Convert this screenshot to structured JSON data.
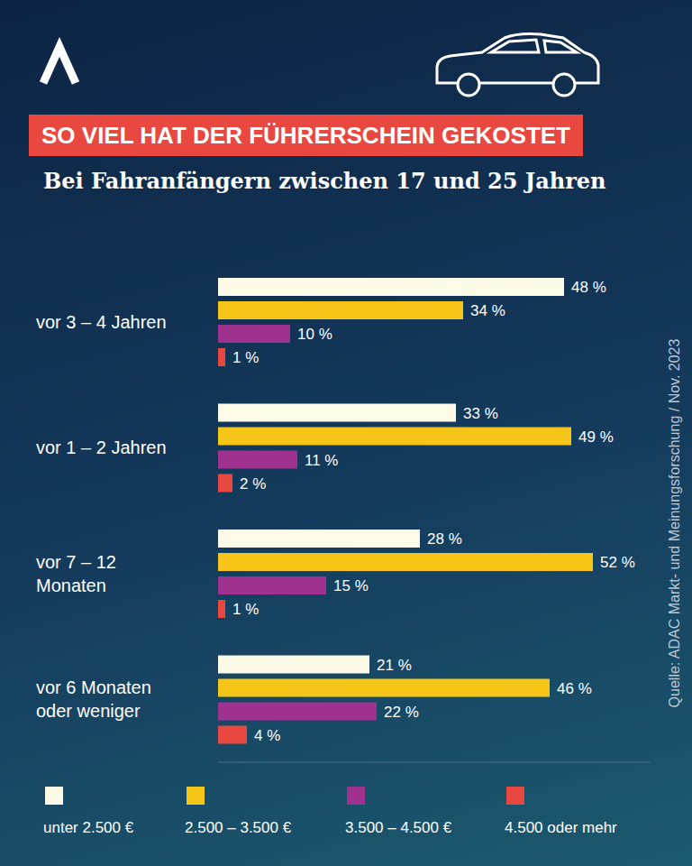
{
  "chart_data": {
    "type": "bar",
    "title": "SO VIEL HAT DER FÜHRERSCHEIN GEKOSTET",
    "subtitle": "Bei Fahranfängern zwischen 17 und 25 Jahren",
    "source": "Quelle: ADAC Markt- und Meinungsforschung / Nov. 2023",
    "orientation": "horizontal",
    "data_labels": true,
    "tick_labels": "y",
    "legend": "bottom",
    "categories": [
      "vor 3 – 4 Jahren",
      "vor 1 – 2 Jahren",
      "vor 7 – 12 Monaten",
      "vor 6 Monaten oder weniger"
    ],
    "xlim": [
      0,
      60
    ],
    "series": [
      {
        "name": "unter 2.500 €",
        "color": "#fdfbe8",
        "values": [
          48,
          33,
          28,
          21
        ],
        "value_labels": [
          "48 %",
          "33 %",
          "28 %",
          "21 %"
        ]
      },
      {
        "name": "2.500 – 3.500 €",
        "color": "#f5c518",
        "values": [
          34,
          49,
          52,
          46
        ],
        "value_labels": [
          "34 %",
          "49 %",
          "52 %",
          "46 %"
        ]
      },
      {
        "name": "3.500 – 4.500 €",
        "color": "#a0328f",
        "values": [
          10,
          11,
          15,
          22
        ],
        "value_labels": [
          "10 %",
          "11 %",
          "15 %",
          "22 %"
        ]
      },
      {
        "name": "4.500 oder mehr",
        "color": "#e8483f",
        "values": [
          1,
          2,
          1,
          4
        ],
        "value_labels": [
          "1 %",
          "2 %",
          "1 %",
          "4 %"
        ]
      }
    ]
  }
}
